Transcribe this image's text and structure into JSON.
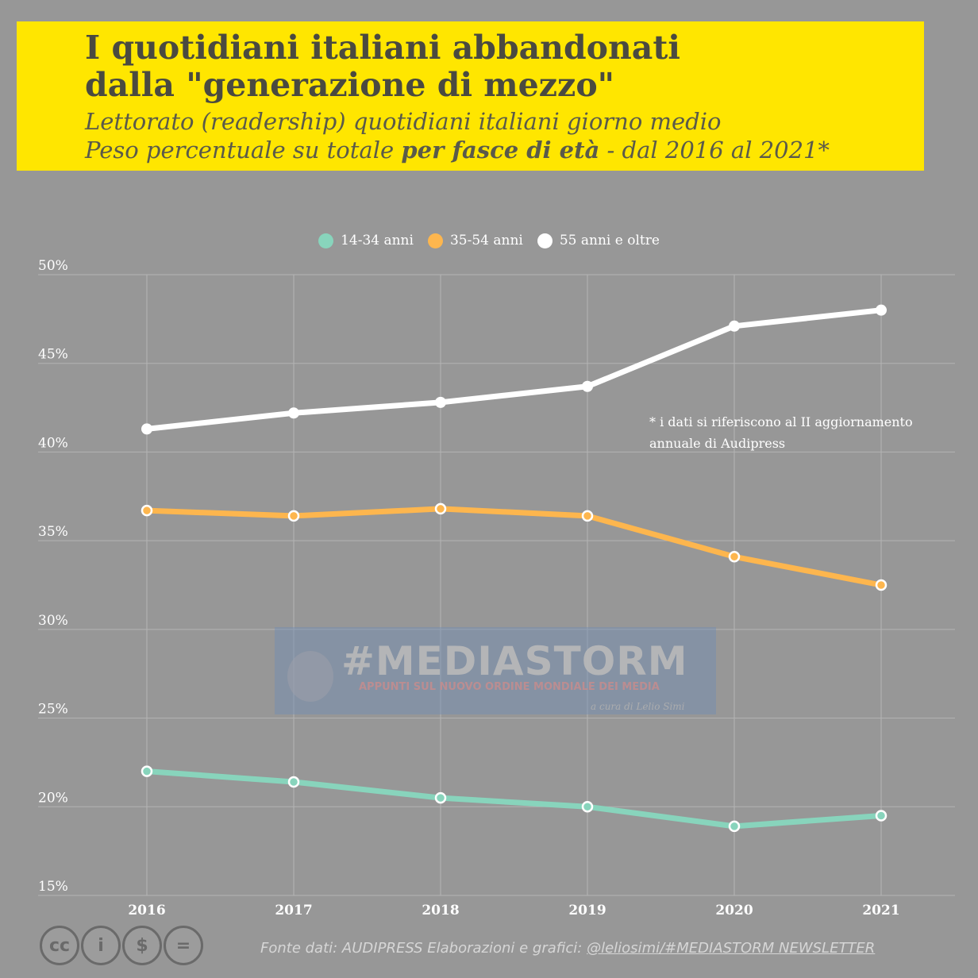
{
  "header": {
    "title_line1": "I quotidiani italiani abbandonati",
    "title_line2": "dalla \"generazione di mezzo\"",
    "subtitle_line1": "Lettorato (readership) quotidiani italiani giorno medio",
    "subtitle_line2_pre": "Peso percentuale su totale ",
    "subtitle_line2_bold": "per fasce di età",
    "subtitle_line2_post": " - dal 2016 al 2021*"
  },
  "footnote": {
    "line1": "* i dati si riferiscono al II aggiornamento",
    "line2": "annuale di Audipress"
  },
  "watermark": {
    "main": "#MEDIASTORM",
    "sub": "APPUNTI SUL NUOVO ORDINE MONDIALE DEI MEDIA",
    "credit": "a cura di Lelio Simi"
  },
  "footer": {
    "source_prefix": "Fonte dati: AUDIPRESS  Elaborazioni e grafici: ",
    "source_handle": "@leliosimi/#MEDIASTORM NEWSLETTER",
    "license_icons": [
      "cc-icon",
      "by-icon",
      "nc-icon",
      "nd-icon"
    ],
    "license_glyphs": [
      "cc",
      "i",
      "$",
      "="
    ]
  },
  "colors": {
    "background": "#979797",
    "title_box": "#FFE600",
    "grid": "#b4b4b4",
    "series_14_34": "#88D4BC",
    "series_35_54": "#FDB64E",
    "series_55_plus": "#FFFFFF"
  },
  "chart_data": {
    "type": "line",
    "x": [
      "2016",
      "2017",
      "2018",
      "2019",
      "2020",
      "2021"
    ],
    "ylim": [
      15,
      50
    ],
    "yticks": [
      15,
      20,
      25,
      30,
      35,
      40,
      45,
      50
    ],
    "ytick_labels": [
      "15%",
      "20%",
      "25%",
      "30%",
      "35%",
      "40%",
      "45%",
      "50%"
    ],
    "grid": true,
    "legend_position": "top-center",
    "series": [
      {
        "name": "14-34 anni",
        "color": "#88D4BC",
        "values": [
          22.0,
          21.4,
          20.5,
          20.0,
          18.9,
          19.5
        ]
      },
      {
        "name": "35-54 anni",
        "color": "#FDB64E",
        "values": [
          36.7,
          36.4,
          36.8,
          36.4,
          34.1,
          32.5
        ]
      },
      {
        "name": "55 anni e oltre",
        "color": "#FFFFFF",
        "values": [
          41.3,
          42.2,
          42.8,
          43.7,
          47.1,
          48.0
        ]
      }
    ]
  }
}
